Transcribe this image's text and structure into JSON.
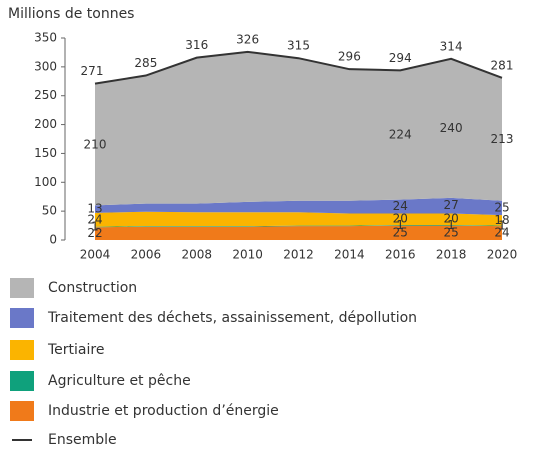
{
  "chart_data": {
    "type": "area",
    "stacked": true,
    "subtitle": "Millions de tonnes",
    "x": [
      2004,
      2006,
      2008,
      2010,
      2012,
      2014,
      2016,
      2018,
      2020
    ],
    "xlim": [
      2004,
      2020
    ],
    "xticks": [
      2004,
      2006,
      2008,
      2010,
      2012,
      2014,
      2016,
      2018,
      2020
    ],
    "ylim": [
      0,
      350
    ],
    "yticks": [
      0,
      50,
      100,
      150,
      200,
      250,
      300,
      350
    ],
    "grid": false,
    "series": [
      {
        "name": "Construction",
        "color": "#b5b5b5",
        "values": [
          210,
          222,
          253,
          260,
          247,
          228,
          224,
          240,
          213
        ],
        "value_labels": [
          210,
          null,
          null,
          null,
          null,
          null,
          224,
          240,
          213
        ]
      },
      {
        "name": "Traitement des déchets, assainissement, dépollution",
        "color": "#6a78c8",
        "values": [
          13,
          14,
          15,
          18,
          20,
          22,
          24,
          27,
          25
        ],
        "value_labels": [
          13,
          null,
          null,
          null,
          null,
          null,
          24,
          27,
          25
        ]
      },
      {
        "name": "Tertiaire",
        "color": "#fbb400",
        "values": [
          24,
          25,
          24,
          24,
          23,
          21,
          20,
          20,
          18
        ],
        "value_labels": [
          24,
          null,
          null,
          null,
          null,
          null,
          20,
          20,
          18
        ]
      },
      {
        "name": "Agriculture et pêche",
        "color": "#0fa17c",
        "values": [
          1,
          1,
          1,
          1,
          1,
          1,
          1,
          1,
          1
        ],
        "value_labels": [
          1,
          null,
          null,
          null,
          null,
          null,
          1,
          1,
          1
        ]
      },
      {
        "name": "Industrie et production d’énergie",
        "color": "#f07a1a",
        "values": [
          22,
          23,
          23,
          23,
          24,
          24,
          25,
          25,
          24
        ],
        "value_labels": [
          22,
          null,
          null,
          null,
          null,
          null,
          25,
          25,
          24
        ]
      }
    ],
    "total": {
      "name": "Ensemble",
      "color": "#333333",
      "values": [
        271,
        285,
        316,
        326,
        315,
        296,
        294,
        314,
        281
      ]
    }
  }
}
